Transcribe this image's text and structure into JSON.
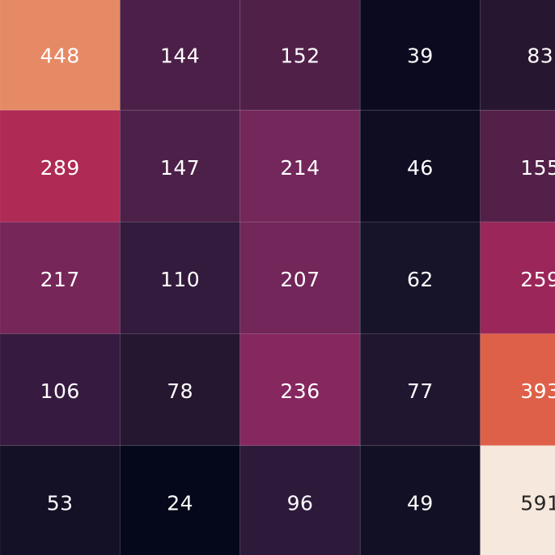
{
  "chart_data": {
    "type": "heatmap",
    "title": "",
    "xlabel": "",
    "ylabel": "",
    "rows": 5,
    "cols": 5,
    "values": [
      [
        448,
        144,
        152,
        39,
        83
      ],
      [
        289,
        147,
        214,
        46,
        155
      ],
      [
        217,
        110,
        207,
        62,
        259
      ],
      [
        106,
        78,
        236,
        77,
        393
      ],
      [
        53,
        24,
        96,
        49,
        591
      ]
    ],
    "labels": [
      [
        "448",
        "144",
        "152",
        "39",
        "83"
      ],
      [
        "289",
        "147",
        "214",
        "46",
        "155"
      ],
      [
        "217",
        "110",
        "207",
        "62",
        "259"
      ],
      [
        "106",
        "78",
        "236",
        "77",
        "393"
      ],
      [
        "53",
        "24",
        "96",
        "49",
        "591"
      ]
    ],
    "colormap": "rocket",
    "value_range": [
      24,
      591
    ],
    "cell_colors": [
      [
        "#E68A65",
        "#4C1F48",
        "#512049",
        "#0C0A1E",
        "#26162F"
      ],
      [
        "#AF2A54",
        "#4D2049",
        "#74275B",
        "#100C22",
        "#532049"
      ],
      [
        "#772659",
        "#331B3D",
        "#722659",
        "#171328",
        "#9B2659"
      ],
      [
        "#371A40",
        "#261730",
        "#872760",
        "#201630",
        "#DE6048"
      ],
      [
        "#141025",
        "#04081A",
        "#2D1A3B",
        "#121024",
        "#F6E8DC"
      ]
    ],
    "text_colors": {
      "light": "#ffffff",
      "dark": "#262626"
    },
    "grid_line_color": "#ffffff"
  }
}
